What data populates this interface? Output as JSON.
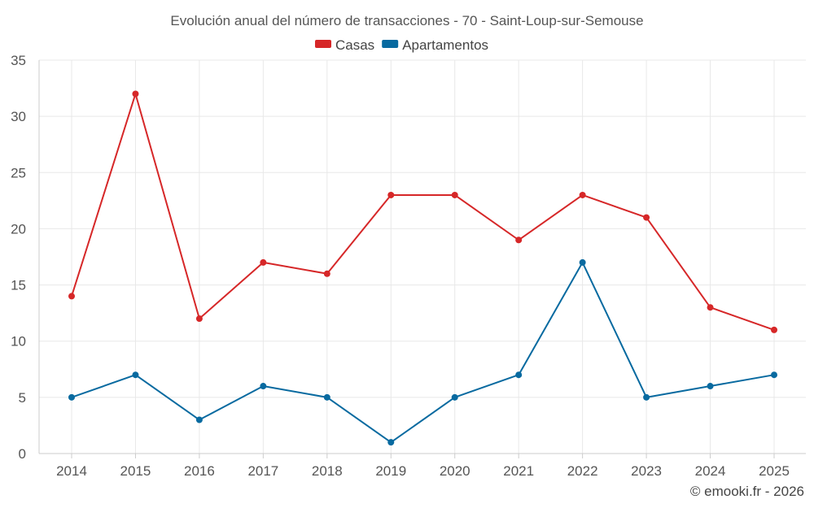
{
  "chart_data": {
    "type": "line",
    "title": "Evolución anual del número de transacciones - 70 - Saint-Loup-sur-Semouse",
    "categories": [
      "2014",
      "2015",
      "2016",
      "2017",
      "2018",
      "2019",
      "2020",
      "2021",
      "2022",
      "2023",
      "2024",
      "2025"
    ],
    "series": [
      {
        "name": "Casas",
        "color": "#d62728",
        "values": [
          14,
          32,
          12,
          17,
          16,
          23,
          23,
          19,
          23,
          21,
          13,
          11
        ]
      },
      {
        "name": "Apartamentos",
        "color": "#086aa0",
        "values": [
          5,
          7,
          3,
          6,
          5,
          1,
          5,
          7,
          17,
          5,
          6,
          7
        ]
      }
    ],
    "ylim": [
      0,
      35
    ],
    "yticks": [
      0,
      5,
      10,
      15,
      20,
      25,
      30,
      35
    ],
    "legend_position": "top-center",
    "grid": true
  },
  "credit": "© emooki.fr - 2026"
}
